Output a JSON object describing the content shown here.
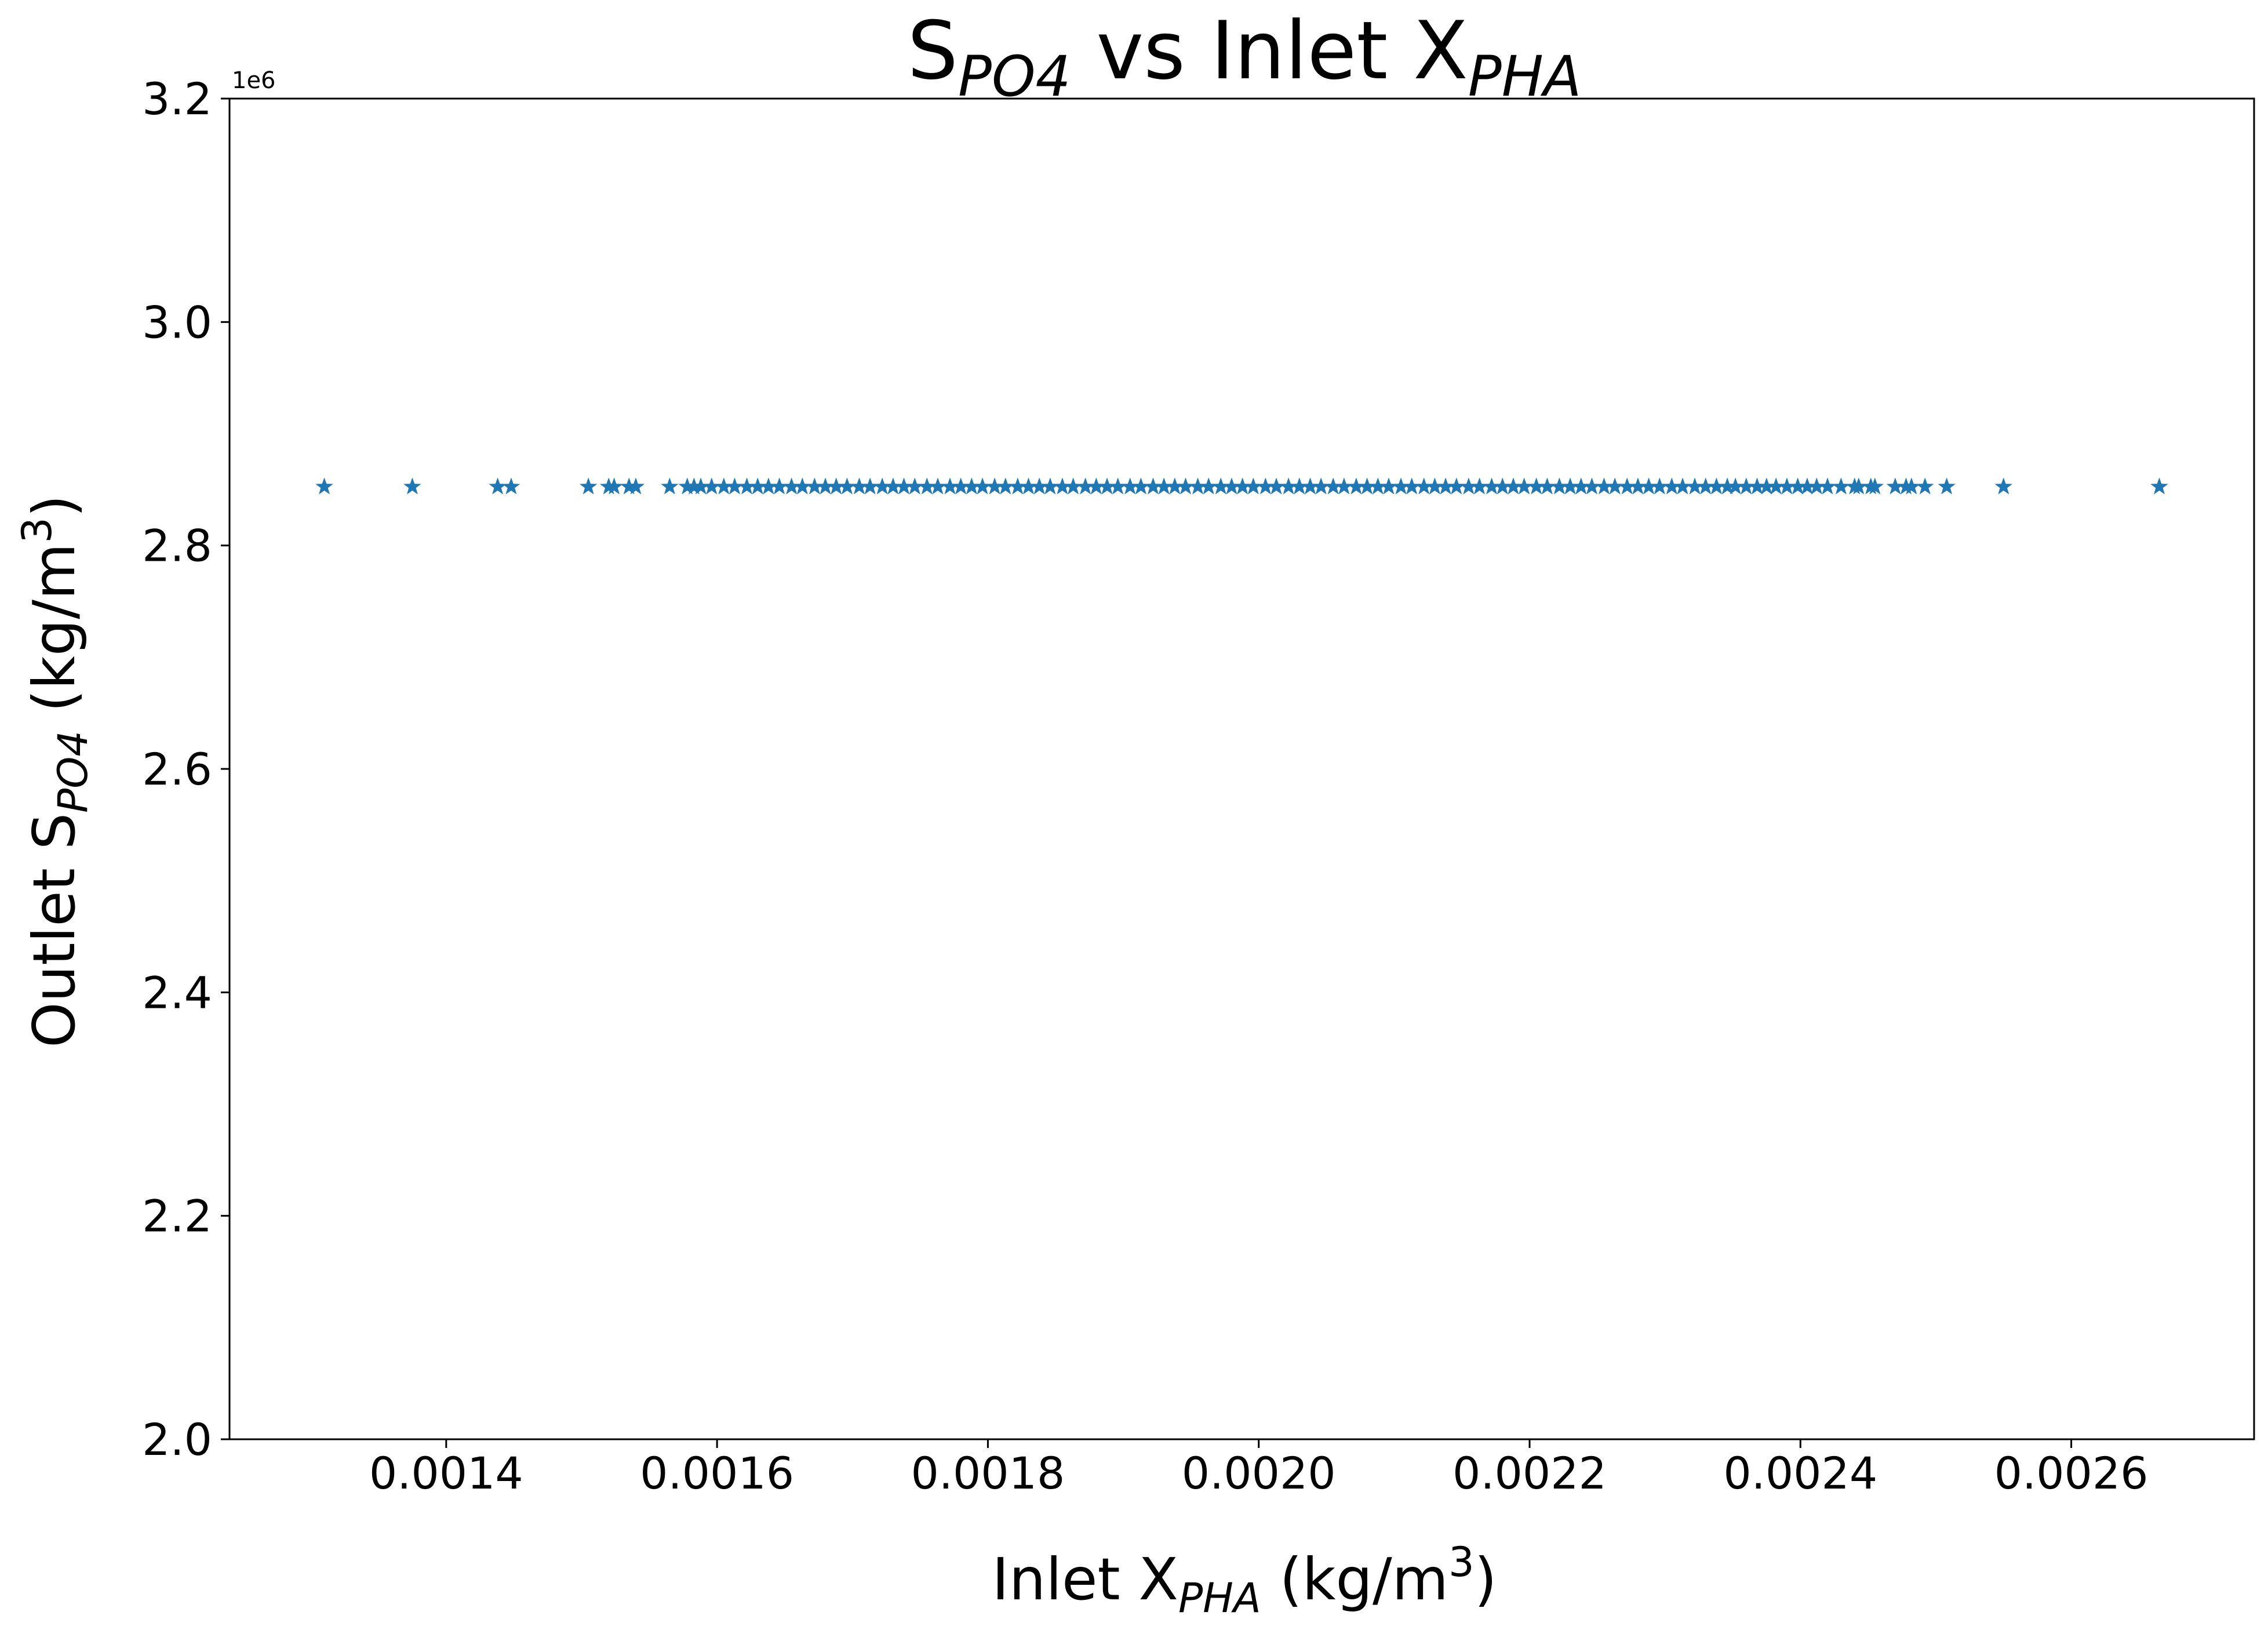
{
  "chart_data": {
    "type": "scatter",
    "title": {
      "main": "S",
      "main_sub": "PO4",
      "mid": " vs Inlet X",
      "mid_sub": "PHA"
    },
    "xlabel": {
      "pre": "Inlet X",
      "sub": "PHA",
      "post": " (kg/m",
      "sup": "3",
      "end": ")"
    },
    "ylabel": {
      "pre": "Outlet S",
      "sub": "PO4",
      "post": " (kg/m",
      "sup": "3",
      "end": ")"
    },
    "y_offset_label": "1e6",
    "xlim": [
      0.00124,
      0.002735
    ],
    "ylim": [
      2.0,
      3.2
    ],
    "x_ticks": [
      0.0014,
      0.0016,
      0.0018,
      0.002,
      0.0022,
      0.0024,
      0.0026
    ],
    "x_tick_labels": [
      "0.0014",
      "0.0016",
      "0.0018",
      "0.0020",
      "0.0022",
      "0.0024",
      "0.0026"
    ],
    "y_ticks": [
      2.0,
      2.2,
      2.4,
      2.6,
      2.8,
      3.0,
      3.2
    ],
    "y_tick_labels": [
      "2.0",
      "2.2",
      "2.4",
      "2.6",
      "2.8",
      "3.0",
      "3.2"
    ],
    "marker": "star",
    "grid": false,
    "legend": "none",
    "series": [
      {
        "color": "#1f77b4",
        "y_value": 2.8525,
        "x": [
          0.00131,
          0.001375,
          0.001438,
          0.001448,
          0.001505,
          0.00152,
          0.001524,
          0.001535,
          0.00154,
          0.001565,
          0.001578,
          0.001583,
          0.001588,
          0.001596,
          0.001605,
          0.001613,
          0.001622,
          0.00163,
          0.001638,
          0.001646,
          0.001655,
          0.001663,
          0.001672,
          0.00168,
          0.001688,
          0.001696,
          0.001705,
          0.001713,
          0.001722,
          0.00173,
          0.001738,
          0.001746,
          0.001755,
          0.001763,
          0.001772,
          0.00178,
          0.001788,
          0.001796,
          0.001805,
          0.001813,
          0.001822,
          0.00183,
          0.001838,
          0.001846,
          0.001855,
          0.001863,
          0.001872,
          0.00188,
          0.001888,
          0.001896,
          0.001905,
          0.001913,
          0.001922,
          0.00193,
          0.001938,
          0.001946,
          0.001955,
          0.001963,
          0.001972,
          0.00198,
          0.001988,
          0.001996,
          0.002005,
          0.002013,
          0.002022,
          0.00203,
          0.002038,
          0.002046,
          0.002055,
          0.002063,
          0.002072,
          0.00208,
          0.002088,
          0.002096,
          0.002105,
          0.002113,
          0.002122,
          0.00213,
          0.002138,
          0.002146,
          0.002155,
          0.002163,
          0.002172,
          0.00218,
          0.002188,
          0.002196,
          0.002205,
          0.002213,
          0.002222,
          0.00223,
          0.002238,
          0.002246,
          0.002255,
          0.002263,
          0.002272,
          0.00228,
          0.002288,
          0.002296,
          0.002305,
          0.002313,
          0.002322,
          0.00233,
          0.002338,
          0.002346,
          0.002352,
          0.00236,
          0.002368,
          0.002375,
          0.002382,
          0.00239,
          0.002398,
          0.002405,
          0.002412,
          0.00242,
          0.00243,
          0.00244,
          0.002443,
          0.002452,
          0.002455,
          0.00247,
          0.002478,
          0.002482,
          0.002492,
          0.002508,
          0.00255,
          0.002665
        ]
      }
    ]
  }
}
